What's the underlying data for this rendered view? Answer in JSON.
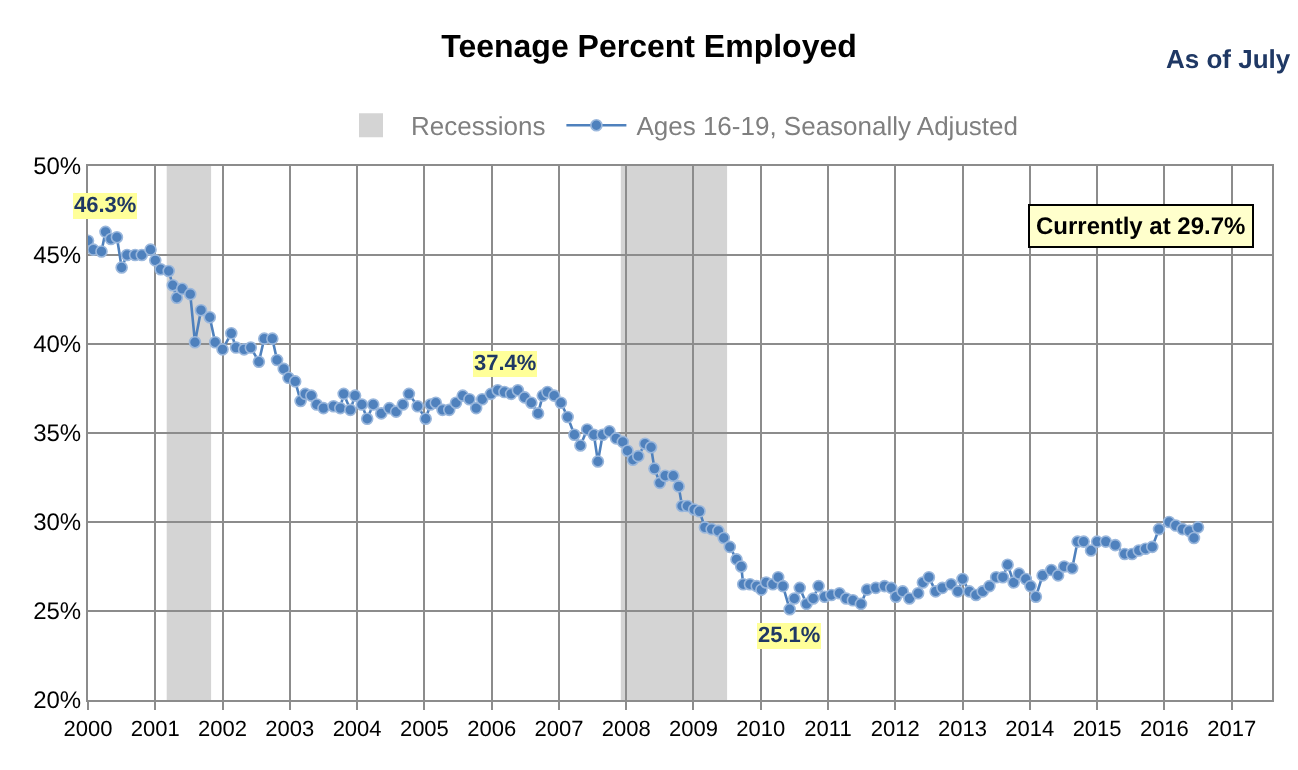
{
  "chart_data": {
    "type": "line",
    "title": "Teenage Percent Employed",
    "x": [
      2000.0,
      2000.08,
      2000.2,
      2000.26,
      2000.34,
      2000.43,
      2000.5,
      2000.58,
      2000.7,
      2000.8,
      2000.93,
      2001.0,
      2001.08,
      2001.2,
      2001.26,
      2001.32,
      2001.4,
      2001.52,
      2001.59,
      2001.68,
      2001.81,
      2001.89,
      2002.0,
      2002.13,
      2002.2,
      2002.32,
      2002.42,
      2002.54,
      2002.62,
      2002.74,
      2002.81,
      2002.91,
      2002.98,
      2003.08,
      2003.16,
      2003.23,
      2003.32,
      2003.4,
      2003.5,
      2003.65,
      2003.75,
      2003.8,
      2003.9,
      2003.97,
      2004.07,
      2004.15,
      2004.24,
      2004.36,
      2004.48,
      2004.58,
      2004.68,
      2004.77,
      2004.9,
      2005.02,
      2005.09,
      2005.17,
      2005.27,
      2005.37,
      2005.47,
      2005.57,
      2005.67,
      2005.77,
      2005.86,
      2005.99,
      2006.09,
      2006.19,
      2006.29,
      2006.39,
      2006.49,
      2006.59,
      2006.69,
      2006.76,
      2006.83,
      2006.93,
      2007.03,
      2007.13,
      2007.23,
      2007.32,
      2007.42,
      2007.52,
      2007.58,
      2007.65,
      2007.75,
      2007.85,
      2007.95,
      2008.02,
      2008.1,
      2008.18,
      2008.28,
      2008.37,
      2008.42,
      2008.5,
      2008.58,
      2008.7,
      2008.78,
      2008.83,
      2008.91,
      2009.01,
      2009.09,
      2009.17,
      2009.27,
      2009.37,
      2009.45,
      2009.54,
      2009.64,
      2009.71,
      2009.74,
      2009.84,
      2009.94,
      2010.01,
      2010.08,
      2010.18,
      2010.26,
      2010.33,
      2010.43,
      2010.5,
      2010.58,
      2010.68,
      2010.78,
      2010.86,
      2010.95,
      2011.05,
      2011.17,
      2011.27,
      2011.37,
      2011.49,
      2011.58,
      2011.71,
      2011.84,
      2011.94,
      2012.01,
      2012.11,
      2012.21,
      2012.34,
      2012.41,
      2012.5,
      2012.6,
      2012.7,
      2012.83,
      2012.93,
      2013.0,
      2013.1,
      2013.2,
      2013.3,
      2013.4,
      2013.5,
      2013.6,
      2013.67,
      2013.76,
      2013.84,
      2013.94,
      2014.01,
      2014.09,
      2014.19,
      2014.32,
      2014.42,
      2014.51,
      2014.63,
      2014.71,
      2014.8,
      2014.91,
      2015.0,
      2015.13,
      2015.27,
      2015.41,
      2015.52,
      2015.62,
      2015.72,
      2015.82,
      2015.92,
      2016.07,
      2016.17,
      2016.27,
      2016.37,
      2016.44,
      2016.5
    ],
    "series": [
      {
        "name": "Ages 16-19, Seasonally Adjusted",
        "color": "#4f81bd",
        "values": [
          45.8,
          45.3,
          45.2,
          46.3,
          45.9,
          46.0,
          44.3,
          45.0,
          45.0,
          45.0,
          45.3,
          44.7,
          44.2,
          44.1,
          43.3,
          42.6,
          43.1,
          42.8,
          40.1,
          41.9,
          41.5,
          40.1,
          39.7,
          40.6,
          39.8,
          39.7,
          39.8,
          39.0,
          40.3,
          40.3,
          39.1,
          38.6,
          38.1,
          37.9,
          36.8,
          37.2,
          37.1,
          36.6,
          36.4,
          36.5,
          36.4,
          37.2,
          36.3,
          37.1,
          36.6,
          35.8,
          36.6,
          36.1,
          36.4,
          36.2,
          36.6,
          37.2,
          36.5,
          35.8,
          36.6,
          36.7,
          36.3,
          36.3,
          36.7,
          37.1,
          36.9,
          36.4,
          36.9,
          37.2,
          37.4,
          37.3,
          37.2,
          37.4,
          37.0,
          36.7,
          36.1,
          37.1,
          37.3,
          37.1,
          36.7,
          35.9,
          34.9,
          34.3,
          35.2,
          34.9,
          33.4,
          34.9,
          35.1,
          34.7,
          34.5,
          34.0,
          33.5,
          33.7,
          34.4,
          34.2,
          33.0,
          32.2,
          32.6,
          32.6,
          32.0,
          30.9,
          30.9,
          30.7,
          30.6,
          29.7,
          29.6,
          29.5,
          29.1,
          28.6,
          27.9,
          27.5,
          26.5,
          26.5,
          26.4,
          26.2,
          26.6,
          26.5,
          26.9,
          26.4,
          25.1,
          25.7,
          26.3,
          25.4,
          25.7,
          26.4,
          25.8,
          25.9,
          26.0,
          25.7,
          25.6,
          25.4,
          26.2,
          26.3,
          26.4,
          26.3,
          25.8,
          26.1,
          25.7,
          26.0,
          26.6,
          26.9,
          26.1,
          26.3,
          26.5,
          26.1,
          26.8,
          26.1,
          25.9,
          26.1,
          26.4,
          26.9,
          26.9,
          27.6,
          26.6,
          27.1,
          26.8,
          26.4,
          25.8,
          27.0,
          27.3,
          27.0,
          27.5,
          27.4,
          28.9,
          28.9,
          28.4,
          28.9,
          28.9,
          28.7,
          28.2,
          28.2,
          28.4,
          28.5,
          28.6,
          29.6,
          30.0,
          29.8,
          29.6,
          29.5,
          29.1,
          29.7
        ]
      }
    ],
    "bands": [
      {
        "axis": "x",
        "from": 2001.17,
        "to": 2001.83,
        "label": "Recessions",
        "color": "#d4d4d4"
      },
      {
        "axis": "x",
        "from": 2007.92,
        "to": 2009.5,
        "color": "#d4d4d4"
      }
    ],
    "annotations": [
      "As of July",
      "Currently at 29.7%",
      {
        "text": "46.3%",
        "x": 2000.26,
        "y": 46.3
      },
      {
        "text": "37.4%",
        "x": 2006.19,
        "y": 37.4
      },
      {
        "text": "25.1%",
        "x": 2010.43,
        "y": 25.1
      }
    ],
    "xlim": [
      2000,
      2017.6
    ],
    "xticks": [
      2000,
      2001,
      2002,
      2003,
      2004,
      2005,
      2006,
      2007,
      2008,
      2009,
      2010,
      2011,
      2012,
      2013,
      2014,
      2015,
      2016,
      2017
    ],
    "ylim": [
      20,
      50
    ],
    "yticks": [
      {
        "value": 20,
        "label": "20%"
      },
      {
        "value": 25,
        "label": "25%"
      },
      {
        "value": 30,
        "label": "30%"
      },
      {
        "value": 35,
        "label": "35%"
      },
      {
        "value": 40,
        "label": "40%"
      },
      {
        "value": 45,
        "label": "45%"
      },
      {
        "value": 50,
        "label": "50%"
      }
    ],
    "grid": true,
    "legend": "top",
    "marker": "circle",
    "line_style": "solid"
  }
}
